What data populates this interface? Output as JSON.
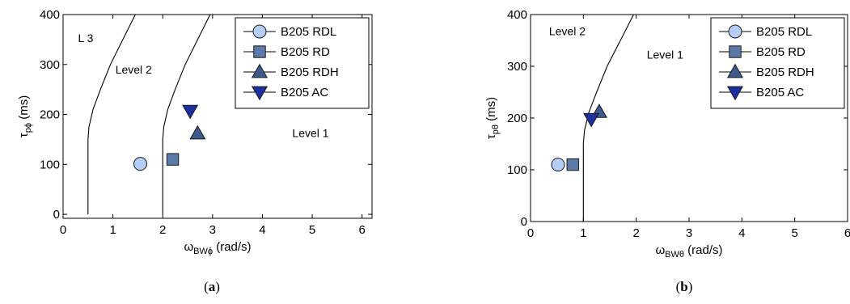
{
  "chart_data": [
    {
      "type": "scatter",
      "title": "",
      "caption": {
        "open": "(",
        "letter": "a",
        "close": ")"
      },
      "xlabel": "ω",
      "xlabel_sub": "BWϕ",
      "xlabel_unit": " (rad/s)",
      "ylabel": "τ",
      "ylabel_sub": "pϕ",
      "ylabel_unit": " (ms)",
      "xlim": [
        0,
        6.2
      ],
      "ylim": [
        -8,
        400
      ],
      "xticks": [
        0,
        1,
        2,
        3,
        4,
        5,
        6
      ],
      "yticks": [
        0,
        100,
        200,
        300,
        400
      ],
      "xtick_labels": [
        "0",
        "1",
        "2",
        "3",
        "4",
        "5",
        "6"
      ],
      "ytick_labels": [
        "0",
        "100",
        "200",
        "300",
        "400"
      ],
      "grid": false,
      "legend_position": "top-right",
      "series": [
        {
          "name": "B205 RDL",
          "marker": "circle",
          "color": "#b5cef7",
          "x": [
            1.55
          ],
          "y": [
            101
          ]
        },
        {
          "name": "B205 RD",
          "marker": "square",
          "color": "#5c7aa8",
          "x": [
            2.2
          ],
          "y": [
            110
          ]
        },
        {
          "name": "B205 RDH",
          "marker": "triangle-up",
          "color": "#3d5a8c",
          "x": [
            2.7
          ],
          "y": [
            162
          ]
        },
        {
          "name": "B205 AC",
          "marker": "triangle-down",
          "color": "#1c2f9e",
          "x": [
            2.55
          ],
          "y": [
            207
          ]
        }
      ],
      "boundaries": [
        {
          "name": "Level 3/2 boundary",
          "x": [
            0.5,
            0.5,
            0.5,
            0.52,
            0.6,
            0.75,
            0.95,
            1.2,
            1.45
          ],
          "y": [
            0,
            100,
            150,
            175,
            210,
            250,
            300,
            350,
            400
          ]
        },
        {
          "name": "Level 2/1 boundary",
          "x": [
            2.0,
            2.0,
            2.0,
            2.02,
            2.1,
            2.25,
            2.45,
            2.7,
            2.95
          ],
          "y": [
            0,
            100,
            150,
            175,
            210,
            250,
            300,
            350,
            400
          ]
        }
      ],
      "annotations": [
        {
          "text": "L 3",
          "x": 0.3,
          "y": 345
        },
        {
          "text": "Level 2",
          "x": 1.05,
          "y": 282
        },
        {
          "text": "Level 1",
          "x": 4.6,
          "y": 155
        }
      ]
    },
    {
      "type": "scatter",
      "title": "",
      "caption": {
        "open": "(",
        "letter": "b",
        "close": ")"
      },
      "xlabel": "ω",
      "xlabel_sub": "BWθ",
      "xlabel_unit": " (rad/s)",
      "ylabel": "τ",
      "ylabel_sub": "pθ",
      "ylabel_unit": " (ms)",
      "xlim": [
        0,
        6
      ],
      "ylim": [
        0,
        400
      ],
      "xticks": [
        0,
        1,
        2,
        3,
        4,
        5,
        6
      ],
      "yticks": [
        0,
        100,
        200,
        300,
        400
      ],
      "xtick_labels": [
        "0",
        "1",
        "2",
        "3",
        "4",
        "5",
        "6"
      ],
      "ytick_labels": [
        "0",
        "100",
        "200",
        "300",
        "400"
      ],
      "grid": false,
      "legend_position": "top-right",
      "series": [
        {
          "name": "B205 RDL",
          "marker": "circle",
          "color": "#b5cef7",
          "x": [
            0.52
          ],
          "y": [
            110
          ]
        },
        {
          "name": "B205 RD",
          "marker": "square",
          "color": "#5c7aa8",
          "x": [
            0.8
          ],
          "y": [
            110
          ]
        },
        {
          "name": "B205 RDH",
          "marker": "triangle-up",
          "color": "#3d5a8c",
          "x": [
            1.3
          ],
          "y": [
            212
          ]
        },
        {
          "name": "B205 AC",
          "marker": "triangle-down",
          "color": "#1c2f9e",
          "x": [
            1.15
          ],
          "y": [
            198
          ]
        }
      ],
      "boundaries": [
        {
          "name": "Level 2/1 boundary",
          "x": [
            1.0,
            1.0,
            1.0,
            1.02,
            1.1,
            1.25,
            1.45,
            1.7,
            1.95
          ],
          "y": [
            0,
            100,
            150,
            175,
            210,
            250,
            300,
            350,
            400
          ]
        }
      ],
      "annotations": [
        {
          "text": "Level 2",
          "x": 0.35,
          "y": 360
        },
        {
          "text": "Level 1",
          "x": 2.2,
          "y": 315
        }
      ]
    }
  ]
}
